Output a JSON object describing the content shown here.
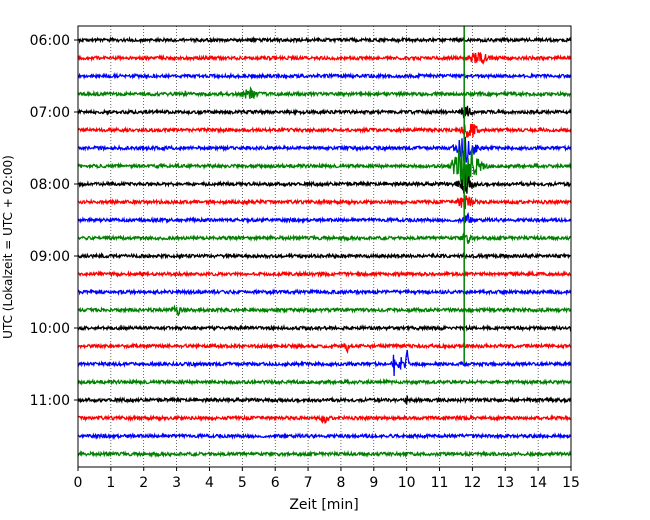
{
  "chart_data": {
    "type": "line",
    "title": "",
    "xlabel": "Zeit  [min]",
    "ylabel": "UTC (Lokalzeit = UTC + 02:00)",
    "xlim": [
      0,
      15
    ],
    "x_ticks": [
      "0",
      "1",
      "2",
      "3",
      "4",
      "5",
      "6",
      "7",
      "8",
      "9",
      "10",
      "11",
      "12",
      "13",
      "14",
      "15"
    ],
    "y_tick_labels": [
      "06:00",
      "07:00",
      "08:00",
      "09:00",
      "10:00",
      "11:00"
    ],
    "rows": [
      {
        "time": "06:00",
        "color": "#000000"
      },
      {
        "time": "06:15",
        "color": "#ff0000"
      },
      {
        "time": "06:30",
        "color": "#0000ff"
      },
      {
        "time": "06:45",
        "color": "#008000"
      },
      {
        "time": "07:00",
        "color": "#000000"
      },
      {
        "time": "07:15",
        "color": "#ff0000"
      },
      {
        "time": "07:30",
        "color": "#0000ff"
      },
      {
        "time": "07:45",
        "color": "#008000"
      },
      {
        "time": "08:00",
        "color": "#000000"
      },
      {
        "time": "08:15",
        "color": "#ff0000"
      },
      {
        "time": "08:30",
        "color": "#0000ff"
      },
      {
        "time": "08:45",
        "color": "#008000"
      },
      {
        "time": "09:00",
        "color": "#000000"
      },
      {
        "time": "09:15",
        "color": "#ff0000"
      },
      {
        "time": "09:30",
        "color": "#0000ff"
      },
      {
        "time": "09:45",
        "color": "#008000"
      },
      {
        "time": "10:00",
        "color": "#000000"
      },
      {
        "time": "10:15",
        "color": "#ff0000"
      },
      {
        "time": "10:30",
        "color": "#0000ff"
      },
      {
        "time": "10:45",
        "color": "#008000"
      },
      {
        "time": "11:00",
        "color": "#000000"
      },
      {
        "time": "11:15",
        "color": "#ff0000"
      },
      {
        "time": "11:30",
        "color": "#0000ff"
      },
      {
        "time": "11:45",
        "color": "#008000"
      }
    ],
    "events": [
      {
        "row": 3,
        "x": 3.3,
        "amp": 0.25,
        "width": 0.05
      },
      {
        "row": 3,
        "x": 5.2,
        "amp": 0.35,
        "width": 0.2
      },
      {
        "row": 1,
        "x": 12.2,
        "amp": 0.35,
        "width": 0.25
      },
      {
        "row": 4,
        "x": 11.8,
        "amp": 0.4,
        "width": 0.15
      },
      {
        "row": 5,
        "x": 11.9,
        "amp": 0.6,
        "width": 0.2
      },
      {
        "row": 6,
        "x": 11.8,
        "amp": 1.0,
        "width": 0.25
      },
      {
        "row": 7,
        "x": 11.8,
        "amp": 1.6,
        "width": 0.35
      },
      {
        "row": 8,
        "x": 11.8,
        "amp": 0.6,
        "width": 0.2
      },
      {
        "row": 9,
        "x": 11.8,
        "amp": 0.5,
        "width": 0.2
      },
      {
        "row": 10,
        "x": 11.8,
        "amp": 0.4,
        "width": 0.15
      },
      {
        "row": 11,
        "x": 11.8,
        "amp": 0.4,
        "width": 0.15
      },
      {
        "row": 15,
        "x": 3.0,
        "amp": 0.4,
        "width": 0.1
      },
      {
        "row": 17,
        "x": 8.2,
        "amp": 0.35,
        "width": 0.1
      },
      {
        "row": 18,
        "x": 9.6,
        "amp": 0.9,
        "width": 0.04
      },
      {
        "row": 18,
        "x": 9.8,
        "amp": 0.8,
        "width": 0.04
      },
      {
        "row": 18,
        "x": 10.0,
        "amp": 1.2,
        "width": 0.04
      },
      {
        "row": 20,
        "x": 10.0,
        "amp": 0.3,
        "width": 0.05
      },
      {
        "row": 21,
        "x": 7.5,
        "amp": 0.3,
        "width": 0.1
      }
    ],
    "spike": {
      "x": 11.75,
      "from_row": 0,
      "to_row": 18,
      "color": "#008000"
    },
    "grid": true,
    "grid_axis": "x"
  }
}
